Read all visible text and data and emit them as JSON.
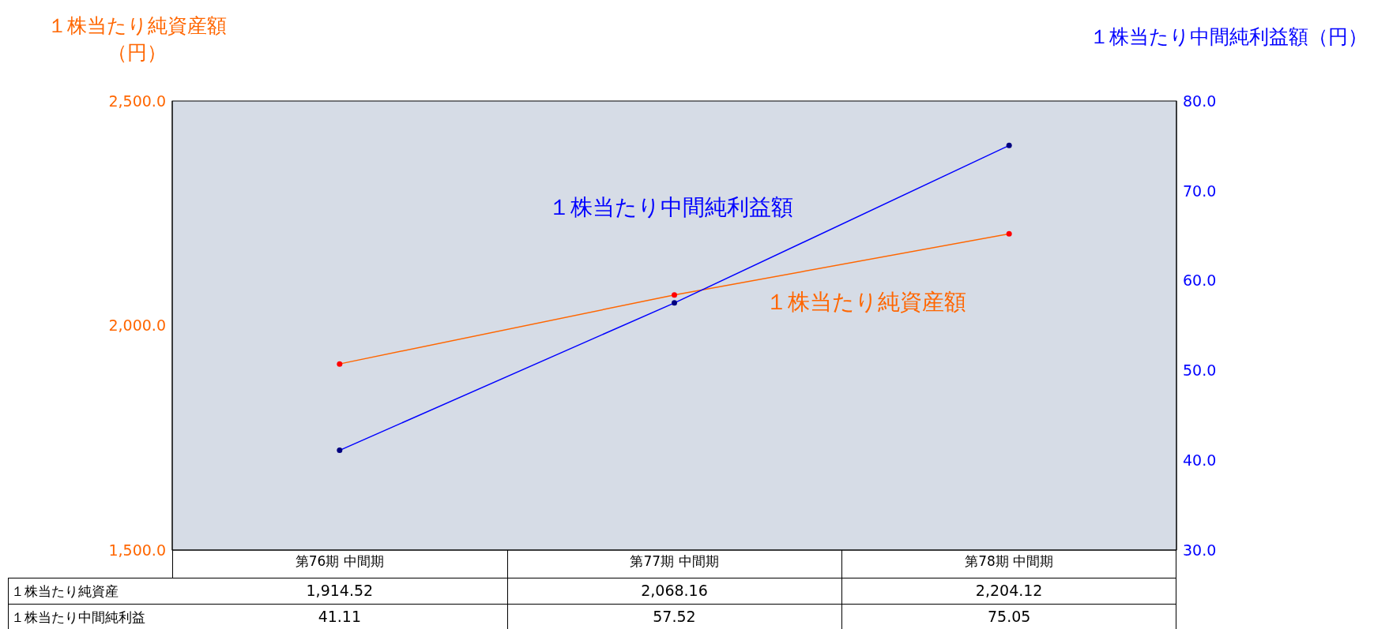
{
  "chart_data": {
    "type": "line",
    "ylabel": "１株当たり純資産額（円）",
    "y2label": "１株当たり中間純利益額（円）",
    "categories": [
      "第76期  中間期",
      "第77期  中間期",
      "第78期  中間期"
    ],
    "series": [
      {
        "name": "１株当たり純資産額",
        "color": "#ff6600",
        "values": [
          1914.52,
          2068.16,
          2204.12
        ],
        "value_labels": [
          "1,914.52",
          "2,068.16",
          "2,204.12"
        ]
      },
      {
        "name": "１株当たり中間純利益額",
        "color": "#0000ff",
        "axis": "y2",
        "values": [
          41.11,
          57.52,
          75.05
        ],
        "value_labels": [
          "41.11",
          "57.52",
          "75.05"
        ]
      }
    ],
    "ylim": [
      1500,
      2500
    ],
    "yticks": [
      {
        "value": 1500,
        "label": "1,500.0"
      },
      {
        "value": 2000,
        "label": "2,000.0"
      },
      {
        "value": 2500,
        "label": "2,500.0"
      }
    ],
    "y2lim": [
      30,
      80
    ],
    "y2ticks": [
      {
        "value": 30,
        "label": "30.0"
      },
      {
        "value": 40,
        "label": "40.0"
      },
      {
        "value": 50,
        "label": "50.0"
      },
      {
        "value": 60,
        "label": "60.0"
      },
      {
        "value": 70,
        "label": "70.0"
      },
      {
        "value": 80,
        "label": "80.0"
      }
    ],
    "annotations": [
      "１株当たり純資産",
      "１株当たり中間純利益"
    ],
    "marker": "circle"
  }
}
